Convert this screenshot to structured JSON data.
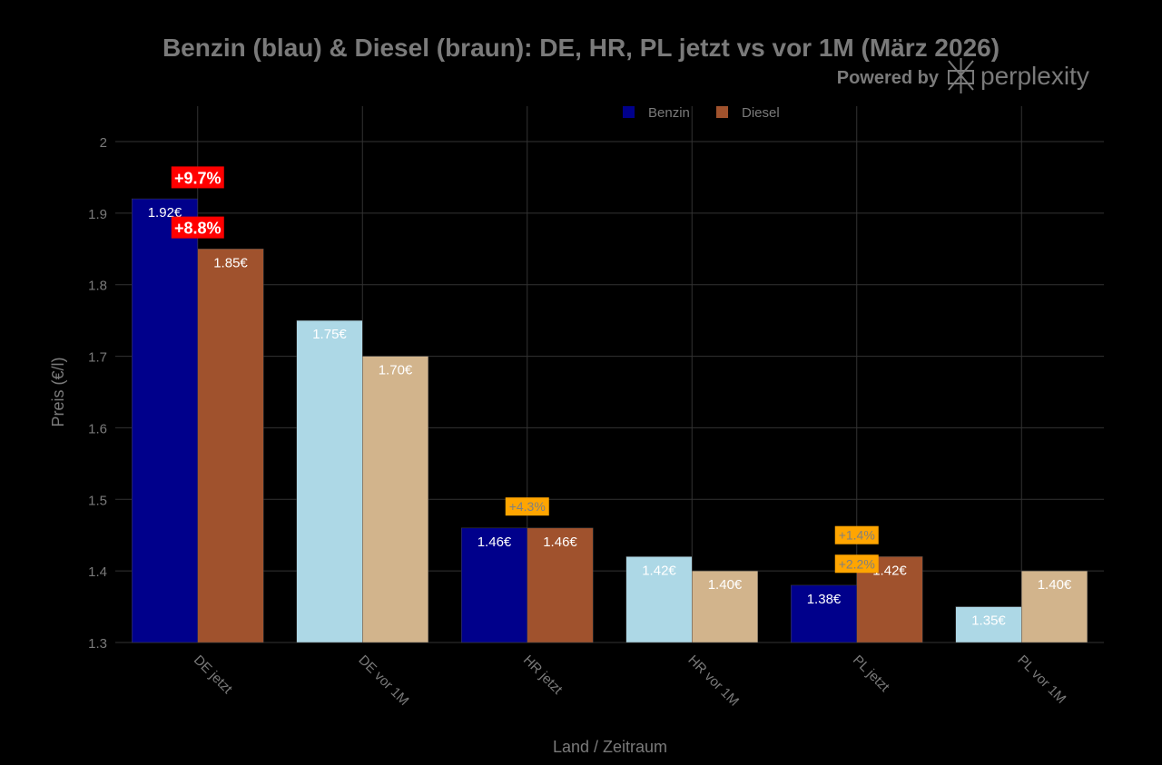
{
  "chart_data": {
    "type": "bar",
    "title": "Benzin (blau) & Diesel (braun): DE, HR, PL jetzt vs vor 1M (März 2026)",
    "watermark": "Powered by perplexity",
    "xlabel": "Land / Zeitraum",
    "ylabel": "Preis (€/l)",
    "ylim": [
      1.3,
      2.0
    ],
    "yticks": [
      "1.3",
      "1.4",
      "1.5",
      "1.6",
      "1.7",
      "1.8",
      "1.9",
      "2"
    ],
    "yticks_values": [
      1.3,
      1.4,
      1.5,
      1.6,
      1.7,
      1.8,
      1.9,
      2.0
    ],
    "grid": true,
    "legend_position": "top-center",
    "categories": [
      "DE jetzt",
      "DE vor 1M",
      "HR jetzt",
      "HR vor 1M",
      "PL jetzt",
      "PL vor 1M"
    ],
    "series": [
      {
        "name": "Benzin",
        "legend_color": "#00008b",
        "values": [
          1.92,
          1.75,
          1.46,
          1.42,
          1.38,
          1.35
        ],
        "labels": [
          "1.92€",
          "1.75€",
          "1.46€",
          "1.42€",
          "1.38€",
          "1.35€"
        ],
        "colors": [
          "#00008b",
          "#add8e6",
          "#00008b",
          "#add8e6",
          "#00008b",
          "#add8e6"
        ]
      },
      {
        "name": "Diesel",
        "legend_color": "#a0522d",
        "values": [
          1.85,
          1.7,
          1.46,
          1.4,
          1.42,
          1.4
        ],
        "labels": [
          "1.85€",
          "1.70€",
          "1.46€",
          "1.40€",
          "1.42€",
          "1.40€"
        ],
        "colors": [
          "#a0522d",
          "#d2b48c",
          "#a0522d",
          "#d2b48c",
          "#a0522d",
          "#d2b48c"
        ]
      }
    ],
    "annotations": [
      {
        "category": "DE jetzt",
        "y": 1.95,
        "text": "+9.7%",
        "bg": "#ff0000",
        "color": "#ffffff",
        "bold": true
      },
      {
        "category": "DE jetzt",
        "y": 1.88,
        "text": "+8.8%",
        "bg": "#ff0000",
        "color": "#ffffff",
        "bold": true
      },
      {
        "category": "HR jetzt",
        "y": 1.49,
        "text": "+4.3%",
        "bg": "#ffa500",
        "color": "#808080",
        "bold": false
      },
      {
        "category": "PL jetzt",
        "y": 1.45,
        "text": "+1.4%",
        "bg": "#ffa500",
        "color": "#808080",
        "bold": false
      },
      {
        "category": "PL jetzt",
        "y": 1.41,
        "text": "+2.2%",
        "bg": "#ffa500",
        "color": "#808080",
        "bold": false
      }
    ]
  }
}
